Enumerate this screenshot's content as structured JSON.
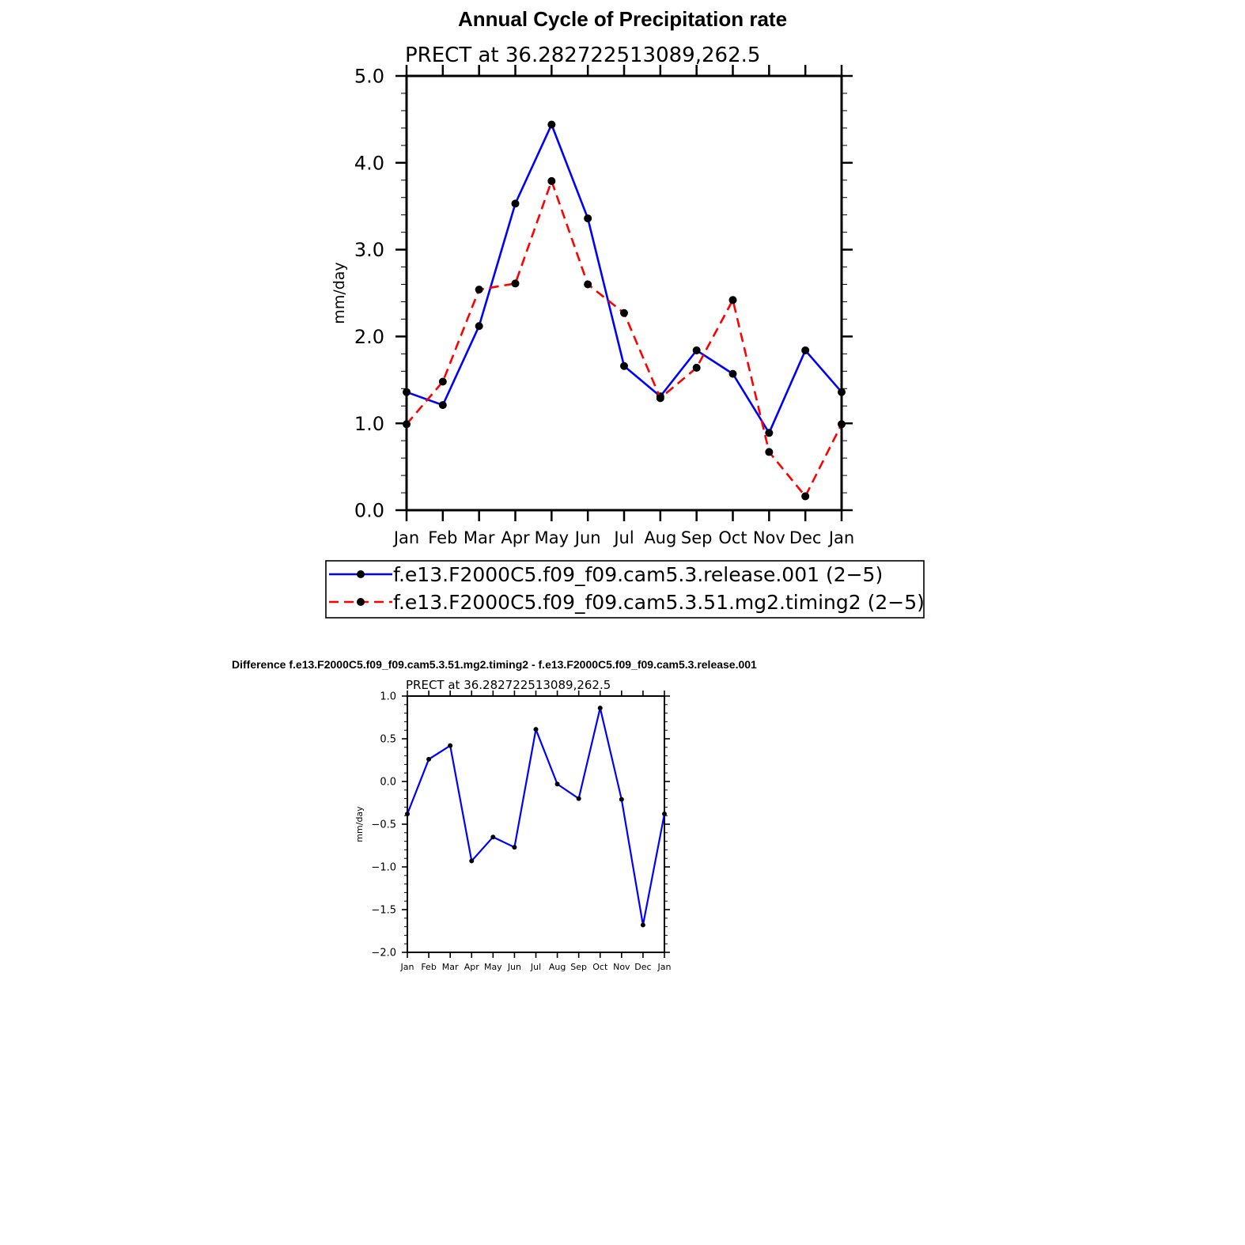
{
  "page": {
    "main_title": "Annual Cycle of Precipitation rate",
    "diff_title": "Difference f.e13.F2000C5.f09_f09.cam5.3.51.mg2.timing2 - f.e13.F2000C5.f09_f09.cam5.3.release.001"
  },
  "chart_data": [
    {
      "type": "line",
      "title": "PRECT at 36.282722513089,262.5",
      "xlabel": "",
      "ylabel": "mm/day",
      "categories": [
        "Jan",
        "Feb",
        "Mar",
        "Apr",
        "May",
        "Jun",
        "Jul",
        "Aug",
        "Sep",
        "Oct",
        "Nov",
        "Dec",
        "Jan"
      ],
      "yticks": [
        "0.0",
        "1.0",
        "2.0",
        "3.0",
        "4.0",
        "5.0"
      ],
      "ylim": [
        0,
        5
      ],
      "grid": false,
      "legend_position": "bottom",
      "series": [
        {
          "name": "f.e13.F2000C5.f09_f09.cam5.3.release.001 (2−5)",
          "color": "#0000ff",
          "style": "solid",
          "values": [
            1.36,
            1.21,
            2.12,
            3.53,
            4.44,
            3.36,
            1.66,
            1.31,
            1.84,
            1.57,
            0.89,
            1.84,
            1.36
          ]
        },
        {
          "name": "f.e13.F2000C5.f09_f09.cam5.3.51.mg2.timing2 (2−5)",
          "color": "#ff0000",
          "style": "dashed",
          "values": [
            0.99,
            1.48,
            2.54,
            2.61,
            3.79,
            2.6,
            2.27,
            1.29,
            1.64,
            2.42,
            0.67,
            0.16,
            0.99
          ]
        }
      ]
    },
    {
      "type": "line",
      "title": "PRECT at 36.282722513089,262.5",
      "xlabel": "",
      "ylabel": "mm/day",
      "categories": [
        "Jan",
        "Feb",
        "Mar",
        "Apr",
        "May",
        "Jun",
        "Jul",
        "Aug",
        "Sep",
        "Oct",
        "Nov",
        "Dec",
        "Jan"
      ],
      "yticks": [
        "−2.0",
        "−1.5",
        "−1.0",
        "−0.5",
        "0.0",
        "0.5",
        "1.0"
      ],
      "ylim": [
        -2,
        1
      ],
      "grid": false,
      "series": [
        {
          "color": "#0000ff",
          "style": "solid",
          "values": [
            -0.38,
            0.26,
            0.42,
            -0.93,
            -0.65,
            -0.77,
            0.61,
            -0.03,
            -0.2,
            0.86,
            -0.21,
            -1.68,
            -0.38
          ]
        }
      ]
    }
  ]
}
